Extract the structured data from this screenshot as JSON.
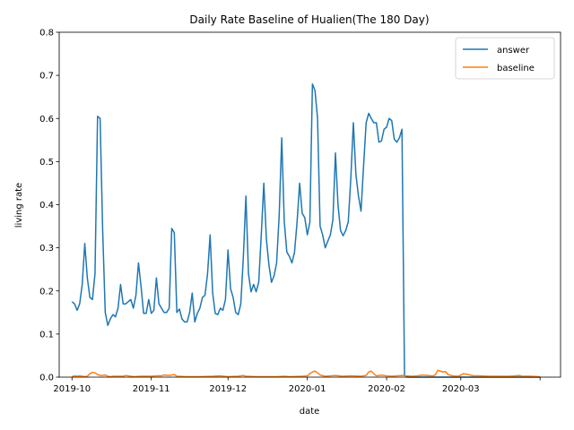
{
  "chart_data": {
    "type": "line",
    "title": "Daily Rate Baseline of Hualien(The 180 Day)",
    "xlabel": "date",
    "ylabel": "living rate",
    "ylim": [
      0,
      0.8
    ],
    "xlim": [
      "2019-09-26",
      "2020-04-09"
    ],
    "yticks": [
      "0.0",
      "0.1",
      "0.2",
      "0.3",
      "0.4",
      "0.5",
      "0.6",
      "0.7",
      "0.8"
    ],
    "xticks": [
      {
        "date": "2019-10-01",
        "label": "2019-10"
      },
      {
        "date": "2019-11-01",
        "label": "2019-11"
      },
      {
        "date": "2019-12-01",
        "label": "2019-12"
      },
      {
        "date": "2020-01-01",
        "label": "2020-01"
      },
      {
        "date": "2020-02-01",
        "label": "2020-02"
      },
      {
        "date": "2020-03-01",
        "label": "2020-03"
      },
      {
        "date": "2020-04-01",
        "label": ""
      }
    ],
    "grid": false,
    "legend": "top-right",
    "series": [
      {
        "name": "answer",
        "color": "#1f77b4",
        "points": [
          [
            "2019-10-01",
            0.175
          ],
          [
            "2019-10-02",
            0.17
          ],
          [
            "2019-10-03",
            0.155
          ],
          [
            "2019-10-04",
            0.17
          ],
          [
            "2019-10-05",
            0.215
          ],
          [
            "2019-10-06",
            0.31
          ],
          [
            "2019-10-07",
            0.23
          ],
          [
            "2019-10-08",
            0.185
          ],
          [
            "2019-10-09",
            0.18
          ],
          [
            "2019-10-10",
            0.24
          ],
          [
            "2019-10-11",
            0.605
          ],
          [
            "2019-10-12",
            0.6
          ],
          [
            "2019-10-13",
            0.34
          ],
          [
            "2019-10-14",
            0.15
          ],
          [
            "2019-10-15",
            0.12
          ],
          [
            "2019-10-16",
            0.135
          ],
          [
            "2019-10-17",
            0.145
          ],
          [
            "2019-10-18",
            0.14
          ],
          [
            "2019-10-19",
            0.16
          ],
          [
            "2019-10-20",
            0.215
          ],
          [
            "2019-10-21",
            0.17
          ],
          [
            "2019-10-22",
            0.17
          ],
          [
            "2019-10-23",
            0.175
          ],
          [
            "2019-10-24",
            0.18
          ],
          [
            "2019-10-25",
            0.16
          ],
          [
            "2019-10-26",
            0.19
          ],
          [
            "2019-10-27",
            0.265
          ],
          [
            "2019-10-28",
            0.21
          ],
          [
            "2019-10-29",
            0.148
          ],
          [
            "2019-10-30",
            0.148
          ],
          [
            "2019-10-31",
            0.18
          ],
          [
            "2019-11-01",
            0.148
          ],
          [
            "2019-11-02",
            0.155
          ],
          [
            "2019-11-03",
            0.23
          ],
          [
            "2019-11-04",
            0.17
          ],
          [
            "2019-11-05",
            0.16
          ],
          [
            "2019-11-06",
            0.15
          ],
          [
            "2019-11-07",
            0.15
          ],
          [
            "2019-11-08",
            0.16
          ],
          [
            "2019-11-09",
            0.345
          ],
          [
            "2019-11-10",
            0.335
          ],
          [
            "2019-11-11",
            0.15
          ],
          [
            "2019-11-12",
            0.158
          ],
          [
            "2019-11-13",
            0.135
          ],
          [
            "2019-11-14",
            0.128
          ],
          [
            "2019-11-15",
            0.128
          ],
          [
            "2019-11-16",
            0.15
          ],
          [
            "2019-11-17",
            0.195
          ],
          [
            "2019-11-18",
            0.128
          ],
          [
            "2019-11-19",
            0.148
          ],
          [
            "2019-11-20",
            0.16
          ],
          [
            "2019-11-21",
            0.185
          ],
          [
            "2019-11-22",
            0.19
          ],
          [
            "2019-11-23",
            0.24
          ],
          [
            "2019-11-24",
            0.33
          ],
          [
            "2019-11-25",
            0.195
          ],
          [
            "2019-11-26",
            0.148
          ],
          [
            "2019-11-27",
            0.145
          ],
          [
            "2019-11-28",
            0.16
          ],
          [
            "2019-11-29",
            0.155
          ],
          [
            "2019-11-30",
            0.18
          ],
          [
            "2019-12-01",
            0.295
          ],
          [
            "2019-12-02",
            0.205
          ],
          [
            "2019-12-03",
            0.185
          ],
          [
            "2019-12-04",
            0.15
          ],
          [
            "2019-12-05",
            0.145
          ],
          [
            "2019-12-06",
            0.17
          ],
          [
            "2019-12-07",
            0.28
          ],
          [
            "2019-12-08",
            0.42
          ],
          [
            "2019-12-09",
            0.24
          ],
          [
            "2019-12-10",
            0.198
          ],
          [
            "2019-12-11",
            0.215
          ],
          [
            "2019-12-12",
            0.198
          ],
          [
            "2019-12-13",
            0.22
          ],
          [
            "2019-12-14",
            0.33
          ],
          [
            "2019-12-15",
            0.45
          ],
          [
            "2019-12-16",
            0.32
          ],
          [
            "2019-12-17",
            0.26
          ],
          [
            "2019-12-18",
            0.22
          ],
          [
            "2019-12-19",
            0.235
          ],
          [
            "2019-12-20",
            0.265
          ],
          [
            "2019-12-21",
            0.375
          ],
          [
            "2019-12-22",
            0.555
          ],
          [
            "2019-12-23",
            0.36
          ],
          [
            "2019-12-24",
            0.29
          ],
          [
            "2019-12-25",
            0.28
          ],
          [
            "2019-12-26",
            0.265
          ],
          [
            "2019-12-27",
            0.29
          ],
          [
            "2019-12-28",
            0.36
          ],
          [
            "2019-12-29",
            0.45
          ],
          [
            "2019-12-30",
            0.38
          ],
          [
            "2019-12-31",
            0.37
          ],
          [
            "2020-01-01",
            0.33
          ],
          [
            "2020-01-02",
            0.36
          ],
          [
            "2020-01-03",
            0.68
          ],
          [
            "2020-01-04",
            0.665
          ],
          [
            "2020-01-05",
            0.6
          ],
          [
            "2020-01-06",
            0.35
          ],
          [
            "2020-01-07",
            0.33
          ],
          [
            "2020-01-08",
            0.3
          ],
          [
            "2020-01-09",
            0.315
          ],
          [
            "2020-01-10",
            0.33
          ],
          [
            "2020-01-11",
            0.365
          ],
          [
            "2020-01-12",
            0.52
          ],
          [
            "2020-01-13",
            0.4
          ],
          [
            "2020-01-14",
            0.34
          ],
          [
            "2020-01-15",
            0.328
          ],
          [
            "2020-01-16",
            0.34
          ],
          [
            "2020-01-17",
            0.36
          ],
          [
            "2020-01-18",
            0.46
          ],
          [
            "2020-01-19",
            0.59
          ],
          [
            "2020-01-20",
            0.47
          ],
          [
            "2020-01-21",
            0.42
          ],
          [
            "2020-01-22",
            0.385
          ],
          [
            "2020-01-23",
            0.49
          ],
          [
            "2020-01-24",
            0.59
          ],
          [
            "2020-01-25",
            0.612
          ],
          [
            "2020-01-26",
            0.6
          ],
          [
            "2020-01-27",
            0.59
          ],
          [
            "2020-01-28",
            0.59
          ],
          [
            "2020-01-29",
            0.545
          ],
          [
            "2020-01-30",
            0.548
          ],
          [
            "2020-01-31",
            0.575
          ],
          [
            "2020-02-01",
            0.58
          ],
          [
            "2020-02-02",
            0.6
          ],
          [
            "2020-02-03",
            0.595
          ],
          [
            "2020-02-04",
            0.552
          ],
          [
            "2020-02-05",
            0.545
          ],
          [
            "2020-02-06",
            0.555
          ],
          [
            "2020-02-07",
            0.575
          ],
          [
            "2020-02-08",
            0.005
          ],
          [
            "2020-02-09",
            0.0
          ],
          [
            "2020-02-10",
            0.0
          ],
          [
            "2020-02-15",
            0.0
          ],
          [
            "2020-02-20",
            0.0
          ],
          [
            "2020-02-25",
            0.0
          ],
          [
            "2020-03-01",
            0.0
          ],
          [
            "2020-03-10",
            0.0
          ],
          [
            "2020-03-20",
            0.0
          ],
          [
            "2020-04-01",
            0.0
          ]
        ]
      },
      {
        "name": "baseline",
        "color": "#ff7f0e",
        "points": [
          [
            "2019-10-01",
            0.001
          ],
          [
            "2019-10-02",
            0.003
          ],
          [
            "2019-10-03",
            0.002
          ],
          [
            "2019-10-04",
            0.003
          ],
          [
            "2019-10-05",
            0.002
          ],
          [
            "2019-10-06",
            0.001
          ],
          [
            "2019-10-07",
            0.002
          ],
          [
            "2019-10-08",
            0.008
          ],
          [
            "2019-10-09",
            0.011
          ],
          [
            "2019-10-10",
            0.01
          ],
          [
            "2019-10-11",
            0.006
          ],
          [
            "2019-10-12",
            0.004
          ],
          [
            "2019-10-13",
            0.004
          ],
          [
            "2019-10-14",
            0.005
          ],
          [
            "2019-10-15",
            0.002
          ],
          [
            "2019-10-16",
            0.001
          ],
          [
            "2019-10-17",
            0.002
          ],
          [
            "2019-10-18",
            0.002
          ],
          [
            "2019-10-19",
            0.002
          ],
          [
            "2019-10-20",
            0.002
          ],
          [
            "2019-10-21",
            0.002
          ],
          [
            "2019-10-22",
            0.004
          ],
          [
            "2019-10-23",
            0.003
          ],
          [
            "2019-10-24",
            0.002
          ],
          [
            "2019-10-25",
            0.001
          ],
          [
            "2019-10-28",
            0.002
          ],
          [
            "2019-11-01",
            0.002
          ],
          [
            "2019-11-03",
            0.003
          ],
          [
            "2019-11-05",
            0.003
          ],
          [
            "2019-11-06",
            0.005
          ],
          [
            "2019-11-08",
            0.004
          ],
          [
            "2019-11-10",
            0.006
          ],
          [
            "2019-11-11",
            0.002
          ],
          [
            "2019-11-15",
            0.001
          ],
          [
            "2019-11-20",
            0.001
          ],
          [
            "2019-11-25",
            0.002
          ],
          [
            "2019-11-28",
            0.003
          ],
          [
            "2019-12-01",
            0.001
          ],
          [
            "2019-12-05",
            0.002
          ],
          [
            "2019-12-07",
            0.004
          ],
          [
            "2019-12-08",
            0.002
          ],
          [
            "2019-12-12",
            0.001
          ],
          [
            "2019-12-16",
            0.001
          ],
          [
            "2019-12-20",
            0.001
          ],
          [
            "2019-12-23",
            0.002
          ],
          [
            "2019-12-25",
            0.001
          ],
          [
            "2019-12-30",
            0.002
          ],
          [
            "2020-01-01",
            0.003
          ],
          [
            "2020-01-02",
            0.008
          ],
          [
            "2020-01-03",
            0.012
          ],
          [
            "2020-01-04",
            0.014
          ],
          [
            "2020-01-05",
            0.01
          ],
          [
            "2020-01-06",
            0.005
          ],
          [
            "2020-01-08",
            0.002
          ],
          [
            "2020-01-10",
            0.003
          ],
          [
            "2020-01-12",
            0.004
          ],
          [
            "2020-01-15",
            0.002
          ],
          [
            "2020-01-18",
            0.003
          ],
          [
            "2020-01-22",
            0.002
          ],
          [
            "2020-01-24",
            0.004
          ],
          [
            "2020-01-25",
            0.012
          ],
          [
            "2020-01-26",
            0.014
          ],
          [
            "2020-01-27",
            0.008
          ],
          [
            "2020-01-28",
            0.003
          ],
          [
            "2020-01-30",
            0.005
          ],
          [
            "2020-02-01",
            0.003
          ],
          [
            "2020-02-03",
            0.002
          ],
          [
            "2020-02-05",
            0.003
          ],
          [
            "2020-02-07",
            0.004
          ],
          [
            "2020-02-09",
            0.003
          ],
          [
            "2020-02-11",
            0.002
          ],
          [
            "2020-02-13",
            0.003
          ],
          [
            "2020-02-15",
            0.005
          ],
          [
            "2020-02-17",
            0.004
          ],
          [
            "2020-02-19",
            0.003
          ],
          [
            "2020-02-20",
            0.005
          ],
          [
            "2020-02-21",
            0.016
          ],
          [
            "2020-02-22",
            0.014
          ],
          [
            "2020-02-23",
            0.012
          ],
          [
            "2020-02-24",
            0.013
          ],
          [
            "2020-02-25",
            0.006
          ],
          [
            "2020-02-27",
            0.003
          ],
          [
            "2020-02-29",
            0.002
          ],
          [
            "2020-03-02",
            0.008
          ],
          [
            "2020-03-04",
            0.006
          ],
          [
            "2020-03-06",
            0.003
          ],
          [
            "2020-03-08",
            0.003
          ],
          [
            "2020-03-12",
            0.002
          ],
          [
            "2020-03-16",
            0.002
          ],
          [
            "2020-03-20",
            0.002
          ],
          [
            "2020-03-24",
            0.004
          ],
          [
            "2020-03-25",
            0.002
          ],
          [
            "2020-03-28",
            0.002
          ],
          [
            "2020-04-01",
            0.001
          ]
        ]
      }
    ]
  }
}
